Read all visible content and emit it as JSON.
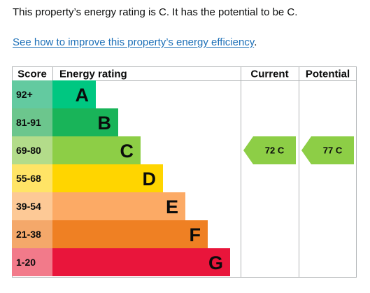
{
  "summary": {
    "text": "This property’s energy rating is C. It has the potential to be C."
  },
  "improve_link": {
    "label": "See how to improve this property’s energy efficiency",
    "suffix": "."
  },
  "chart_data": {
    "type": "table",
    "headers": {
      "score": "Score",
      "rating": "Energy rating",
      "current": "Current",
      "potential": "Potential"
    },
    "bands": [
      {
        "score": "92+",
        "letter": "A",
        "color": "#00c781",
        "score_bg": "#63caa0"
      },
      {
        "score": "81-91",
        "letter": "B",
        "color": "#19b459",
        "score_bg": "#6cc68d"
      },
      {
        "score": "69-80",
        "letter": "C",
        "color": "#8dce46",
        "score_bg": "#b3dc8a"
      },
      {
        "score": "55-68",
        "letter": "D",
        "color": "#ffd500",
        "score_bg": "#ffe466"
      },
      {
        "score": "39-54",
        "letter": "E",
        "color": "#fcaa65",
        "score_bg": "#fdc996"
      },
      {
        "score": "21-38",
        "letter": "F",
        "color": "#ef8023",
        "score_bg": "#f4a86a"
      },
      {
        "score": "1-20",
        "letter": "G",
        "color": "#e9153b",
        "score_bg": "#f27a8a"
      }
    ],
    "current": {
      "value": 72,
      "letter": "C",
      "label": "72 C",
      "color": "#8dce46"
    },
    "potential": {
      "value": 77,
      "letter": "C",
      "label": "77 C",
      "color": "#8dce46"
    }
  }
}
